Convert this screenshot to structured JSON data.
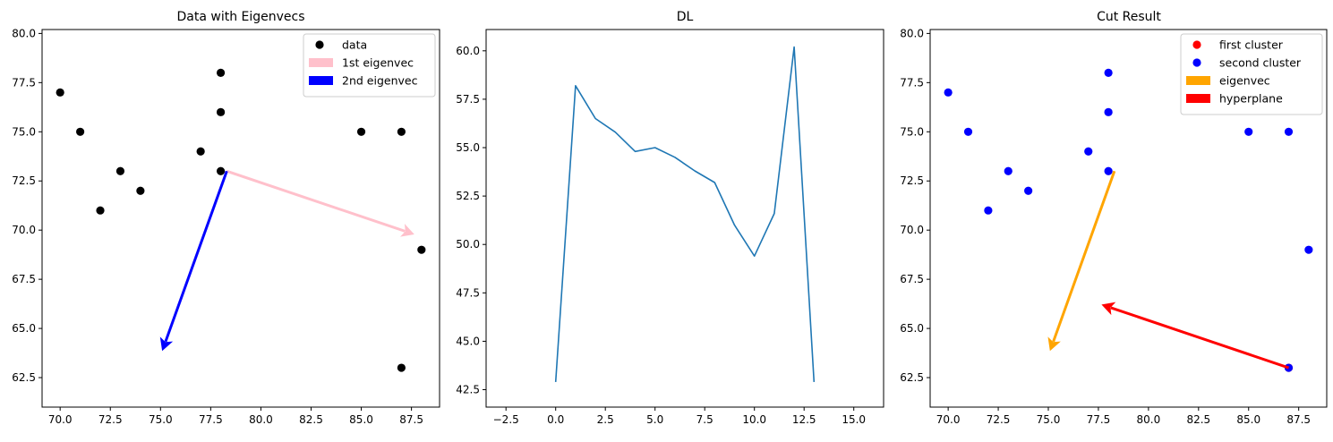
{
  "chart_data": [
    {
      "type": "scatter",
      "title": "Data with Eigenvecs",
      "xlabel": "",
      "ylabel": "",
      "xlim": [
        69.1,
        88.9
      ],
      "ylim": [
        61.0,
        80.2
      ],
      "xticks": [
        "70.0",
        "72.5",
        "75.0",
        "77.5",
        "80.0",
        "82.5",
        "85.0",
        "87.5"
      ],
      "yticks": [
        "62.5",
        "65.0",
        "67.5",
        "70.0",
        "72.5",
        "75.0",
        "77.5",
        "80.0"
      ],
      "xtick_values": [
        70.0,
        72.5,
        75.0,
        77.5,
        80.0,
        82.5,
        85.0,
        87.5
      ],
      "ytick_values": [
        62.5,
        65.0,
        67.5,
        70.0,
        72.5,
        75.0,
        77.5,
        80.0
      ],
      "series": [
        {
          "name": "data",
          "kind": "points",
          "color": "#000000",
          "points": [
            [
              70,
              77
            ],
            [
              71,
              75
            ],
            [
              72,
              71
            ],
            [
              73,
              73
            ],
            [
              74,
              72
            ],
            [
              77,
              74
            ],
            [
              78,
              78
            ],
            [
              78,
              76
            ],
            [
              78,
              73
            ],
            [
              85,
              75
            ],
            [
              87,
              75
            ],
            [
              88,
              69
            ],
            [
              87,
              63
            ]
          ]
        },
        {
          "name": "1st eigenvec",
          "kind": "arrow",
          "color": "#ffc0cb",
          "from": [
            78.3,
            73.0
          ],
          "to": [
            87.6,
            69.8
          ]
        },
        {
          "name": "2nd eigenvec",
          "kind": "arrow",
          "color": "#0000ff",
          "from": [
            78.3,
            73.0
          ],
          "to": [
            75.1,
            63.9
          ]
        }
      ],
      "legend": "top-right"
    },
    {
      "type": "line",
      "title": "DL",
      "xlabel": "",
      "ylabel": "",
      "xlim": [
        -3.5,
        16.5
      ],
      "ylim": [
        41.6,
        61.1
      ],
      "xticks": [
        "−2.5",
        "0.0",
        "2.5",
        "5.0",
        "7.5",
        "10.0",
        "12.5",
        "15.0"
      ],
      "yticks": [
        "42.5",
        "45.0",
        "47.5",
        "50.0",
        "52.5",
        "55.0",
        "57.5",
        "60.0"
      ],
      "xtick_values": [
        -2.5,
        0.0,
        2.5,
        5.0,
        7.5,
        10.0,
        12.5,
        15.0
      ],
      "ytick_values": [
        42.5,
        45.0,
        47.5,
        50.0,
        52.5,
        55.0,
        57.5,
        60.0
      ],
      "series": [
        {
          "name": "",
          "kind": "line",
          "color": "#1f77b4",
          "x": [
            0,
            1,
            2,
            3,
            4,
            5,
            6,
            7,
            8,
            9,
            10,
            11,
            12,
            13
          ],
          "y": [
            42.9,
            58.2,
            56.5,
            55.8,
            54.8,
            55.0,
            54.5,
            53.8,
            53.2,
            51.0,
            49.4,
            51.6,
            60.2,
            42.9
          ]
        }
      ]
    },
    {
      "type": "scatter",
      "title": "Cut Result",
      "xlabel": "",
      "ylabel": "",
      "xlim": [
        69.1,
        88.9
      ],
      "ylim": [
        61.0,
        80.2
      ],
      "xticks": [
        "70.0",
        "72.5",
        "75.0",
        "77.5",
        "80.0",
        "82.5",
        "85.0",
        "87.5"
      ],
      "yticks": [
        "62.5",
        "65.0",
        "67.5",
        "70.0",
        "72.5",
        "75.0",
        "77.5",
        "80.0"
      ],
      "xtick_values": [
        70.0,
        72.5,
        75.0,
        77.5,
        80.0,
        82.5,
        85.0,
        87.5
      ],
      "ytick_values": [
        62.5,
        65.0,
        67.5,
        70.0,
        72.5,
        75.0,
        77.5,
        80.0
      ],
      "series": [
        {
          "name": "first cluster",
          "kind": "points",
          "color": "#ff0000",
          "points": [
            [
              87,
              63
            ]
          ]
        },
        {
          "name": "second cluster",
          "kind": "points",
          "color": "#0000ff",
          "points": [
            [
              70,
              77
            ],
            [
              71,
              75
            ],
            [
              72,
              71
            ],
            [
              73,
              73
            ],
            [
              74,
              72
            ],
            [
              77,
              74
            ],
            [
              78,
              78
            ],
            [
              78,
              76
            ],
            [
              78,
              73
            ],
            [
              85,
              75
            ],
            [
              87,
              75
            ],
            [
              88,
              69
            ],
            [
              87,
              63
            ]
          ]
        },
        {
          "name": "eigenvec",
          "kind": "arrow",
          "color": "#ffa500",
          "from": [
            78.3,
            73.0
          ],
          "to": [
            75.1,
            63.9
          ]
        },
        {
          "name": "hyperplane",
          "kind": "arrow",
          "color": "#ff0000",
          "from": [
            87.0,
            63.0
          ],
          "to": [
            77.7,
            66.2
          ]
        }
      ],
      "legend": "top-right"
    }
  ]
}
